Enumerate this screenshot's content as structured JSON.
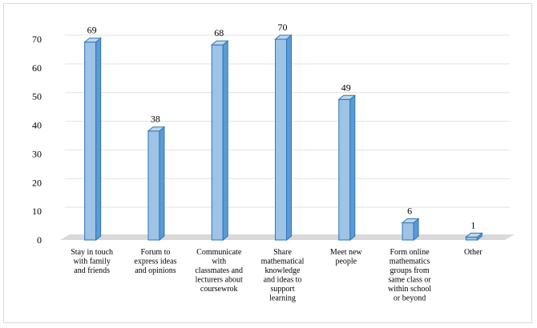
{
  "chart_data": {
    "type": "bar",
    "style": "3d-column",
    "categories": [
      [
        "Stay in touch",
        "with family",
        "and friends"
      ],
      [
        "Forum to",
        "express ideas",
        "and opinions"
      ],
      [
        "Communicate",
        "with",
        "classmates and",
        "lecturers about",
        "coursewrok"
      ],
      [
        "Share",
        "mathematical",
        "knowledge",
        "and ideas to",
        "support",
        "learning"
      ],
      [
        "Meet new",
        "people"
      ],
      [
        "Form online",
        "mathematics",
        "groups from",
        "same class or",
        "within school",
        "or beyond"
      ],
      [
        "Other"
      ]
    ],
    "values": [
      69,
      38,
      68,
      70,
      49,
      6,
      1
    ],
    "data_labels": [
      "69",
      "38",
      "68",
      "70",
      "49",
      "6",
      "1"
    ],
    "ylim": [
      0,
      70
    ],
    "yticks": [
      "0",
      "10",
      "20",
      "30",
      "40",
      "50",
      "60",
      "70"
    ],
    "grid": true,
    "legend": "none",
    "colors": {
      "bar_front": "#9dc3e6",
      "bar_side": "#5b9bd5",
      "bar_top": "#bdd7ee",
      "bar_edge": "#2e75b6",
      "grid": "#e3e3e3",
      "floor": "#d9d9d9"
    }
  }
}
